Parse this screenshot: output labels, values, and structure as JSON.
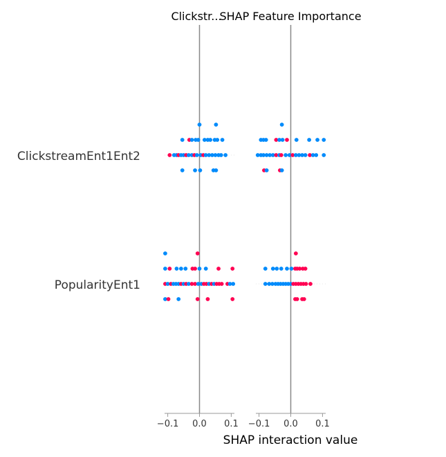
{
  "chart_data": {
    "type": "scatter",
    "plot_kind": "shap-interaction-beeswarm",
    "title_left": "Clickstr...",
    "title_right": "SHAP Feature Importance",
    "xlabel": "SHAP interaction value",
    "features": [
      "ClickstreamEnt1Ent2",
      "PopularityEnt1"
    ],
    "colors": {
      "low": "#008bfb",
      "high": "#ff0052",
      "axis": "#999999",
      "zero_line": "#888888"
    },
    "panels": [
      {
        "xlim": [
          -0.11,
          0.11
        ],
        "xticks": [
          "-0.1",
          "0.0",
          "0.1"
        ],
        "xtick_values": [
          -0.1,
          0.0,
          0.1
        ],
        "rows": [
          {
            "feature": "ClickstreamEnt1Ent2",
            "points": [
              {
                "x": 0.0,
                "lane": -2,
                "v": 0
              },
              {
                "x": 0.052,
                "lane": -2,
                "v": 0
              },
              {
                "x": -0.054,
                "lane": -1,
                "v": 0
              },
              {
                "x": -0.032,
                "lane": -1,
                "v": 1
              },
              {
                "x": -0.024,
                "lane": -1,
                "v": 0
              },
              {
                "x": -0.012,
                "lane": -1,
                "v": 0
              },
              {
                "x": -0.004,
                "lane": -1,
                "v": 0
              },
              {
                "x": 0.016,
                "lane": -1,
                "v": 0
              },
              {
                "x": 0.026,
                "lane": -1,
                "v": 0
              },
              {
                "x": 0.034,
                "lane": -1,
                "v": 0
              },
              {
                "x": 0.048,
                "lane": -1,
                "v": 0
              },
              {
                "x": 0.056,
                "lane": -1,
                "v": 0
              },
              {
                "x": 0.072,
                "lane": -1,
                "v": 0
              },
              {
                "x": -0.094,
                "lane": 0,
                "v": 1
              },
              {
                "x": -0.08,
                "lane": 0,
                "v": 0
              },
              {
                "x": -0.072,
                "lane": 0,
                "v": 0
              },
              {
                "x": -0.066,
                "lane": 0,
                "v": 1
              },
              {
                "x": -0.058,
                "lane": 0,
                "v": 0
              },
              {
                "x": -0.05,
                "lane": 0,
                "v": 0
              },
              {
                "x": -0.042,
                "lane": 0,
                "v": 1
              },
              {
                "x": -0.034,
                "lane": 0,
                "v": 0
              },
              {
                "x": -0.024,
                "lane": 0,
                "v": 0
              },
              {
                "x": -0.016,
                "lane": 0,
                "v": 1
              },
              {
                "x": -0.008,
                "lane": 0,
                "v": 0
              },
              {
                "x": 0.004,
                "lane": 0,
                "v": 0
              },
              {
                "x": 0.012,
                "lane": 0,
                "v": 1
              },
              {
                "x": 0.02,
                "lane": 0,
                "v": 0
              },
              {
                "x": 0.03,
                "lane": 0,
                "v": 0
              },
              {
                "x": 0.04,
                "lane": 0,
                "v": 0
              },
              {
                "x": 0.05,
                "lane": 0,
                "v": 0
              },
              {
                "x": 0.06,
                "lane": 0,
                "v": 0
              },
              {
                "x": 0.068,
                "lane": 0,
                "v": 0
              },
              {
                "x": 0.082,
                "lane": 0,
                "v": 0
              },
              {
                "x": -0.054,
                "lane": 1,
                "v": 0
              },
              {
                "x": -0.014,
                "lane": 1,
                "v": 0
              },
              {
                "x": 0.002,
                "lane": 1,
                "v": 0
              },
              {
                "x": 0.044,
                "lane": 1,
                "v": 0
              },
              {
                "x": 0.052,
                "lane": 1,
                "v": 0
              }
            ]
          },
          {
            "feature": "PopularityEnt1",
            "points": [
              {
                "x": -0.108,
                "lane": -2,
                "v": 0
              },
              {
                "x": -0.006,
                "lane": -2,
                "v": 1
              },
              {
                "x": -0.108,
                "lane": -1,
                "v": 0
              },
              {
                "x": -0.094,
                "lane": -1,
                "v": 1
              },
              {
                "x": -0.072,
                "lane": -1,
                "v": 0
              },
              {
                "x": -0.058,
                "lane": -1,
                "v": 0
              },
              {
                "x": -0.044,
                "lane": -1,
                "v": 0
              },
              {
                "x": -0.022,
                "lane": -1,
                "v": 1
              },
              {
                "x": -0.014,
                "lane": -1,
                "v": 1
              },
              {
                "x": 0.0,
                "lane": -1,
                "v": 0
              },
              {
                "x": 0.02,
                "lane": -1,
                "v": 0
              },
              {
                "x": 0.06,
                "lane": -1,
                "v": 1
              },
              {
                "x": 0.104,
                "lane": -1,
                "v": 1
              },
              {
                "x": -0.108,
                "lane": 0,
                "v": 1
              },
              {
                "x": -0.1,
                "lane": 0,
                "v": 0
              },
              {
                "x": -0.09,
                "lane": 0,
                "v": 1
              },
              {
                "x": -0.082,
                "lane": 0,
                "v": 0
              },
              {
                "x": -0.074,
                "lane": 0,
                "v": 0
              },
              {
                "x": -0.066,
                "lane": 0,
                "v": 0
              },
              {
                "x": -0.058,
                "lane": 0,
                "v": 1
              },
              {
                "x": -0.05,
                "lane": 0,
                "v": 0
              },
              {
                "x": -0.042,
                "lane": 0,
                "v": 1
              },
              {
                "x": -0.034,
                "lane": 0,
                "v": 0
              },
              {
                "x": -0.024,
                "lane": 0,
                "v": 1
              },
              {
                "x": -0.014,
                "lane": 0,
                "v": 1
              },
              {
                "x": -0.004,
                "lane": 0,
                "v": 0
              },
              {
                "x": 0.006,
                "lane": 0,
                "v": 0
              },
              {
                "x": 0.014,
                "lane": 0,
                "v": 1
              },
              {
                "x": 0.022,
                "lane": 0,
                "v": 1
              },
              {
                "x": 0.03,
                "lane": 0,
                "v": 0
              },
              {
                "x": 0.038,
                "lane": 0,
                "v": 1
              },
              {
                "x": 0.046,
                "lane": 0,
                "v": 0
              },
              {
                "x": 0.054,
                "lane": 0,
                "v": 1
              },
              {
                "x": 0.062,
                "lane": 0,
                "v": 1
              },
              {
                "x": 0.07,
                "lane": 0,
                "v": 1
              },
              {
                "x": 0.088,
                "lane": 0,
                "v": 1
              },
              {
                "x": 0.096,
                "lane": 0,
                "v": 0
              },
              {
                "x": 0.106,
                "lane": 0,
                "v": 0
              },
              {
                "x": -0.108,
                "lane": 1,
                "v": 0
              },
              {
                "x": -0.098,
                "lane": 1,
                "v": 1
              },
              {
                "x": -0.066,
                "lane": 1,
                "v": 0
              },
              {
                "x": -0.006,
                "lane": 1,
                "v": 1
              },
              {
                "x": 0.026,
                "lane": 1,
                "v": 1
              },
              {
                "x": 0.104,
                "lane": 1,
                "v": 1
              }
            ]
          }
        ]
      },
      {
        "xlim": [
          -0.11,
          0.11
        ],
        "xticks": [
          "-0.1",
          "0.0",
          "0.1"
        ],
        "xtick_values": [
          -0.1,
          0.0,
          0.1
        ],
        "rows": [
          {
            "feature": "ClickstreamEnt1Ent2",
            "points": [
              {
                "x": -0.028,
                "lane": -2,
                "v": 0
              },
              {
                "x": -0.094,
                "lane": -1,
                "v": 0
              },
              {
                "x": -0.086,
                "lane": -1,
                "v": 0
              },
              {
                "x": -0.078,
                "lane": -1,
                "v": 0
              },
              {
                "x": -0.046,
                "lane": -1,
                "v": 1
              },
              {
                "x": -0.036,
                "lane": -1,
                "v": 0
              },
              {
                "x": -0.026,
                "lane": -1,
                "v": 0
              },
              {
                "x": -0.012,
                "lane": -1,
                "v": 1
              },
              {
                "x": 0.018,
                "lane": -1,
                "v": 0
              },
              {
                "x": 0.058,
                "lane": -1,
                "v": 0
              },
              {
                "x": 0.084,
                "lane": -1,
                "v": 0
              },
              {
                "x": 0.104,
                "lane": -1,
                "v": 0
              },
              {
                "x": -0.104,
                "lane": 0,
                "v": 0
              },
              {
                "x": -0.094,
                "lane": 0,
                "v": 0
              },
              {
                "x": -0.086,
                "lane": 0,
                "v": 0
              },
              {
                "x": -0.076,
                "lane": 0,
                "v": 0
              },
              {
                "x": -0.066,
                "lane": 0,
                "v": 0
              },
              {
                "x": -0.056,
                "lane": 0,
                "v": 0
              },
              {
                "x": -0.046,
                "lane": 0,
                "v": 1
              },
              {
                "x": -0.036,
                "lane": 0,
                "v": 0
              },
              {
                "x": -0.03,
                "lane": 0,
                "v": 1
              },
              {
                "x": -0.016,
                "lane": 0,
                "v": 0
              },
              {
                "x": -0.004,
                "lane": 0,
                "v": 0
              },
              {
                "x": 0.006,
                "lane": 0,
                "v": 1
              },
              {
                "x": 0.016,
                "lane": 0,
                "v": 0
              },
              {
                "x": 0.026,
                "lane": 0,
                "v": 0
              },
              {
                "x": 0.036,
                "lane": 0,
                "v": 0
              },
              {
                "x": 0.046,
                "lane": 0,
                "v": 0
              },
              {
                "x": 0.06,
                "lane": 0,
                "v": 1
              },
              {
                "x": 0.07,
                "lane": 0,
                "v": 0
              },
              {
                "x": 0.08,
                "lane": 0,
                "v": 0
              },
              {
                "x": 0.104,
                "lane": 0,
                "v": 0
              },
              {
                "x": -0.084,
                "lane": 1,
                "v": 1
              },
              {
                "x": -0.076,
                "lane": 1,
                "v": 0
              },
              {
                "x": -0.034,
                "lane": 1,
                "v": 1
              },
              {
                "x": -0.028,
                "lane": 1,
                "v": 0
              }
            ]
          },
          {
            "feature": "PopularityEnt1",
            "points": [
              {
                "x": 0.016,
                "lane": -2,
                "v": 1
              },
              {
                "x": -0.08,
                "lane": -1,
                "v": 0
              },
              {
                "x": -0.056,
                "lane": -1,
                "v": 0
              },
              {
                "x": -0.044,
                "lane": -1,
                "v": 0
              },
              {
                "x": -0.03,
                "lane": -1,
                "v": 0
              },
              {
                "x": -0.012,
                "lane": -1,
                "v": 0
              },
              {
                "x": 0.002,
                "lane": -1,
                "v": 0
              },
              {
                "x": 0.014,
                "lane": -1,
                "v": 1
              },
              {
                "x": 0.02,
                "lane": -1,
                "v": 1
              },
              {
                "x": 0.028,
                "lane": -1,
                "v": 1
              },
              {
                "x": 0.038,
                "lane": -1,
                "v": 1
              },
              {
                "x": 0.046,
                "lane": -1,
                "v": 1
              },
              {
                "x": -0.08,
                "lane": 0,
                "v": 0
              },
              {
                "x": -0.068,
                "lane": 0,
                "v": 0
              },
              {
                "x": -0.058,
                "lane": 0,
                "v": 0
              },
              {
                "x": -0.048,
                "lane": 0,
                "v": 0
              },
              {
                "x": -0.04,
                "lane": 0,
                "v": 0
              },
              {
                "x": -0.032,
                "lane": 0,
                "v": 0
              },
              {
                "x": -0.024,
                "lane": 0,
                "v": 0
              },
              {
                "x": -0.016,
                "lane": 0,
                "v": 0
              },
              {
                "x": -0.008,
                "lane": 0,
                "v": 0
              },
              {
                "x": 0.0,
                "lane": 0,
                "v": 0
              },
              {
                "x": 0.008,
                "lane": 0,
                "v": 1
              },
              {
                "x": 0.016,
                "lane": 0,
                "v": 1
              },
              {
                "x": 0.024,
                "lane": 0,
                "v": 1
              },
              {
                "x": 0.032,
                "lane": 0,
                "v": 1
              },
              {
                "x": 0.04,
                "lane": 0,
                "v": 1
              },
              {
                "x": 0.048,
                "lane": 0,
                "v": 1
              },
              {
                "x": 0.062,
                "lane": 0,
                "v": 1
              },
              {
                "x": 0.014,
                "lane": 1,
                "v": 1
              },
              {
                "x": 0.02,
                "lane": 1,
                "v": 1
              },
              {
                "x": 0.036,
                "lane": 1,
                "v": 1
              },
              {
                "x": 0.042,
                "lane": 1,
                "v": 1
              }
            ]
          }
        ]
      }
    ]
  }
}
